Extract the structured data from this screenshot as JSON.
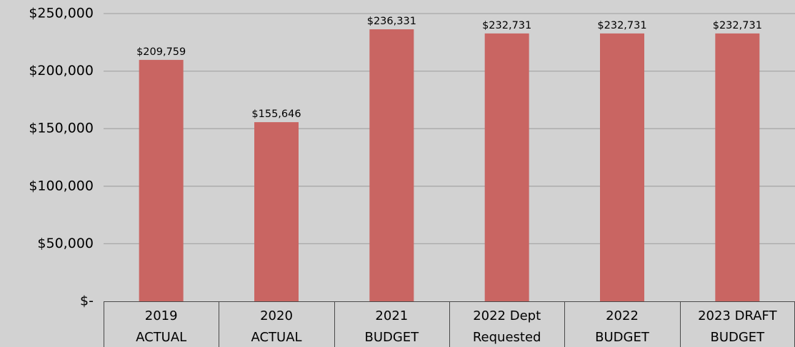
{
  "chart_data": {
    "type": "bar",
    "title": "",
    "xlabel": "",
    "ylabel": "",
    "categories": [
      [
        "2019",
        "ACTUAL"
      ],
      [
        "2020",
        "ACTUAL"
      ],
      [
        "2021",
        "BUDGET"
      ],
      [
        "2022 Dept",
        "Requested"
      ],
      [
        "2022",
        "BUDGET"
      ],
      [
        "2023 DRAFT",
        "BUDGET"
      ]
    ],
    "values": [
      209759,
      155646,
      236331,
      232731,
      232731,
      232731
    ],
    "value_labels": [
      "$209,759",
      "$155,646",
      "$236,331",
      "$232,731",
      "$232,731",
      "$232,731"
    ],
    "ylim": [
      0,
      250000
    ],
    "y_ticks": [
      0,
      50000,
      100000,
      150000,
      200000,
      250000
    ],
    "y_tick_labels": [
      "$-",
      "$50,000",
      "$100,000",
      "$150,000",
      "$200,000",
      "$250,000"
    ],
    "grid": true,
    "legend": "none",
    "bar_color": "#c96562",
    "background_color": "#d2d2d2"
  }
}
